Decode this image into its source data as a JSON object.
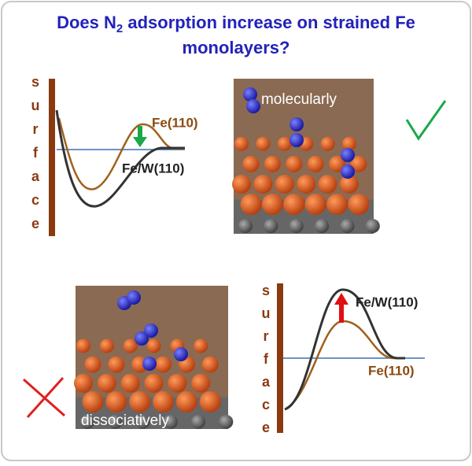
{
  "title": {
    "line1": [
      "Does N",
      "2",
      " adsorption increase on strained Fe"
    ],
    "line2": "monolayers?"
  },
  "panels": [
    {
      "axis_letters": [
        "s",
        "u",
        "r",
        "f",
        "a",
        "c",
        "e"
      ],
      "labels": [
        "Fe(110)",
        "Fe/W(110)"
      ]
    },
    {
      "image_label": "molecularly"
    },
    {
      "image_label": "dissociatively"
    },
    {
      "axis_letters": [
        "s",
        "u",
        "r",
        "f",
        "a",
        "c",
        "e"
      ],
      "labels": [
        "Fe/W(110)",
        "Fe(110)"
      ]
    }
  ]
}
